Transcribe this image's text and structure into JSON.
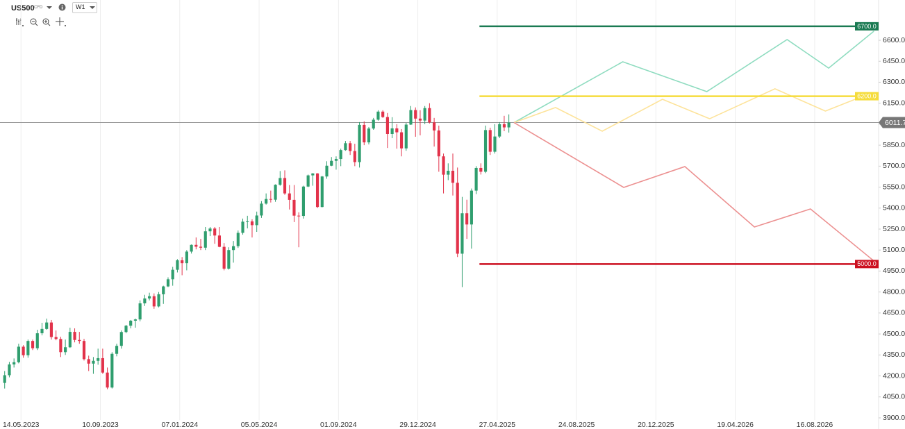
{
  "header": {
    "symbol": "US500",
    "badge": "CFD",
    "timeframe": "W1"
  },
  "chart_data": {
    "type": "candlestick",
    "xlim": [
      -1,
      187.2
    ],
    "ylim": [
      3885,
      6888
    ],
    "xticks": [
      {
        "value": 3.5,
        "label": "14.05.2023"
      },
      {
        "value": 20.5,
        "label": "10.09.2023"
      },
      {
        "value": 37.5,
        "label": "07.01.2024"
      },
      {
        "value": 54.5,
        "label": "05.05.2024"
      },
      {
        "value": 71.5,
        "label": "01.09.2024"
      },
      {
        "value": 88.5,
        "label": "29.12.2024"
      },
      {
        "value": 105.5,
        "label": "27.04.2025"
      },
      {
        "value": 122.5,
        "label": "24.08.2025"
      },
      {
        "value": 139.5,
        "label": "20.12.2025"
      },
      {
        "value": 156.5,
        "label": "19.04.2026"
      },
      {
        "value": 173.5,
        "label": "16.08.2026"
      }
    ],
    "yticks": [
      {
        "value": 3900,
        "label": "3900.0"
      },
      {
        "value": 4050,
        "label": "4050.0"
      },
      {
        "value": 4200,
        "label": "4200.0"
      },
      {
        "value": 4350,
        "label": "4350.0"
      },
      {
        "value": 4500,
        "label": "4500.0"
      },
      {
        "value": 4650,
        "label": "4650.0"
      },
      {
        "value": 4800,
        "label": "4800.0"
      },
      {
        "value": 4950,
        "label": "4950.0"
      },
      {
        "value": 5100,
        "label": "5100.0"
      },
      {
        "value": 5250,
        "label": "5250.0"
      },
      {
        "value": 5400,
        "label": "5400.0"
      },
      {
        "value": 5550,
        "label": "5550.0"
      },
      {
        "value": 5700,
        "label": "5700.0"
      },
      {
        "value": 5850,
        "label": "5850.0"
      },
      {
        "value": 6000,
        "label": "6000.0"
      },
      {
        "value": 6150,
        "label": "6150.0"
      },
      {
        "value": 6300,
        "label": "6300.0"
      },
      {
        "value": 6450,
        "label": "6450.0"
      },
      {
        "value": 6600,
        "label": "6600.0"
      }
    ],
    "grid": true,
    "up_color": "#2f9e6e",
    "down_color": "#e2324a",
    "open": [
      4150,
      4205,
      4282,
      4298,
      4409,
      4348,
      4450,
      4398,
      4505,
      4536,
      4582,
      4478,
      4464,
      4370,
      4405,
      4515,
      4457,
      4450,
      4320,
      4288,
      4308,
      4327,
      4224,
      4117,
      4358,
      4415,
      4514,
      4559,
      4595,
      4604,
      4719,
      4754,
      4770,
      4697,
      4784,
      4840,
      4891,
      4959,
      5027,
      5006,
      5089,
      5137,
      5124,
      5117,
      5234,
      5254,
      5204,
      5123,
      4967,
      5100,
      5128,
      5223,
      5303,
      5305,
      5278,
      5347,
      5432,
      5465,
      5460,
      5567,
      5615,
      5505,
      5459,
      5346,
      5344,
      5554,
      5634,
      5648,
      5408,
      5626,
      5703,
      5738,
      5751,
      5815,
      5864,
      5808,
      5729,
      5995,
      5870,
      5969,
      6032,
      6090,
      6051,
      5930,
      5970,
      5942,
      5827,
      5997,
      6101,
      6040,
      6026,
      6115,
      6013,
      5955,
      5770,
      5639,
      5667,
      5581,
      5074,
      5363,
      5283,
      5525,
      5687,
      5660,
      5958,
      5803,
      5912,
      6000,
      5977
    ],
    "high": [
      4235,
      4300,
      4325,
      4430,
      4420,
      4460,
      4460,
      4530,
      4580,
      4610,
      4600,
      4525,
      4480,
      4460,
      4545,
      4540,
      4515,
      4465,
      4345,
      4335,
      4395,
      4395,
      4260,
      4370,
      4430,
      4525,
      4565,
      4600,
      4610,
      4740,
      4780,
      4795,
      4790,
      4800,
      4845,
      4905,
      4980,
      5035,
      5050,
      5100,
      5140,
      5190,
      5180,
      5265,
      5265,
      5265,
      5265,
      5150,
      5120,
      5165,
      5240,
      5325,
      5345,
      5320,
      5375,
      5450,
      5505,
      5525,
      5570,
      5665,
      5670,
      5565,
      5565,
      5370,
      5560,
      5640,
      5650,
      5650,
      5630,
      5735,
      5765,
      5770,
      5825,
      5880,
      5880,
      5860,
      6015,
      6020,
      5980,
      6045,
      6100,
      6100,
      6080,
      6050,
      6000,
      5965,
      6010,
      6130,
      6120,
      6100,
      6130,
      6150,
      6045,
      5990,
      5790,
      5720,
      5790,
      5690,
      5480,
      5460,
      5540,
      5700,
      5720,
      5990,
      5975,
      6000,
      6015,
      6060,
      6070
    ],
    "low": [
      4110,
      4190,
      4260,
      4290,
      4330,
      4330,
      4385,
      4385,
      4490,
      4530,
      4460,
      4455,
      4335,
      4350,
      4400,
      4440,
      4430,
      4310,
      4235,
      4215,
      4280,
      4215,
      4105,
      4110,
      4340,
      4395,
      4505,
      4540,
      4545,
      4590,
      4700,
      4740,
      4680,
      4690,
      4715,
      4835,
      4845,
      4940,
      4920,
      4955,
      5075,
      5105,
      5100,
      5100,
      5200,
      5145,
      5120,
      4955,
      4960,
      5010,
      5115,
      5210,
      5255,
      5190,
      5230,
      5330,
      5425,
      5440,
      5445,
      5560,
      5495,
      5390,
      5300,
      5120,
      5325,
      5550,
      5560,
      5400,
      5405,
      5610,
      5700,
      5675,
      5700,
      5810,
      5780,
      5700,
      5690,
      5850,
      5855,
      5960,
      6025,
      6045,
      5830,
      5900,
      5825,
      5770,
      5810,
      5995,
      5910,
      5920,
      6000,
      6005,
      5840,
      5660,
      5505,
      5600,
      5490,
      5050,
      4835,
      5180,
      5110,
      5500,
      5640,
      5650,
      5780,
      5790,
      5900,
      5950,
      5940
    ],
    "close": [
      4205,
      4282,
      4298,
      4409,
      4348,
      4450,
      4398,
      4505,
      4536,
      4582,
      4478,
      4464,
      4370,
      4405,
      4515,
      4457,
      4450,
      4320,
      4288,
      4308,
      4327,
      4224,
      4117,
      4358,
      4415,
      4514,
      4559,
      4595,
      4604,
      4719,
      4754,
      4770,
      4697,
      4784,
      4840,
      4891,
      4959,
      5027,
      5006,
      5089,
      5137,
      5124,
      5117,
      5234,
      5254,
      5204,
      5123,
      4967,
      5100,
      5128,
      5223,
      5303,
      5305,
      5278,
      5347,
      5432,
      5465,
      5460,
      5567,
      5615,
      5505,
      5459,
      5346,
      5344,
      5554,
      5634,
      5648,
      5408,
      5626,
      5703,
      5738,
      5751,
      5815,
      5864,
      5808,
      5729,
      5995,
      5870,
      5969,
      6032,
      6090,
      6051,
      5930,
      5970,
      5942,
      5827,
      5997,
      6101,
      6040,
      6026,
      6115,
      6013,
      5955,
      5770,
      5639,
      5667,
      5581,
      5074,
      5363,
      5283,
      5525,
      5687,
      5660,
      5958,
      5803,
      5912,
      6000,
      5977,
      6011.7
    ],
    "levels": [
      {
        "value": 6700,
        "label": "6700.0",
        "color": "#1a7a52",
        "x_start": 101.7
      },
      {
        "value": 6200,
        "label": "6200.0",
        "color": "#f5dc3c",
        "x_start": 101.7
      },
      {
        "value": 5000,
        "label": "5000.0",
        "color": "#cc0f1f",
        "x_start": 101.7
      }
    ],
    "current": {
      "value": 6011.7,
      "label": "6011.7",
      "color": "#999999"
    },
    "series": [
      {
        "color": "#8fdcc0",
        "x": [
          109.1,
          132.4,
          150.4,
          167.6,
          176.5,
          186.2
        ],
        "values": [
          6011.7,
          6446,
          6233,
          6605,
          6401,
          6665
        ]
      },
      {
        "color": "#fde39a",
        "x": [
          109.1,
          118,
          128,
          140.9,
          151,
          165,
          175.8,
          183.3
        ],
        "values": [
          6011.7,
          6119,
          5950,
          6178,
          6039,
          6253,
          6094,
          6193
        ]
      },
      {
        "color": "#ec9090",
        "x": [
          109.1,
          132.6,
          145.7,
          160.6,
          172.6,
          186.2
        ],
        "values": [
          6011.7,
          5548,
          5697,
          5265,
          5394,
          5022
        ]
      }
    ]
  }
}
